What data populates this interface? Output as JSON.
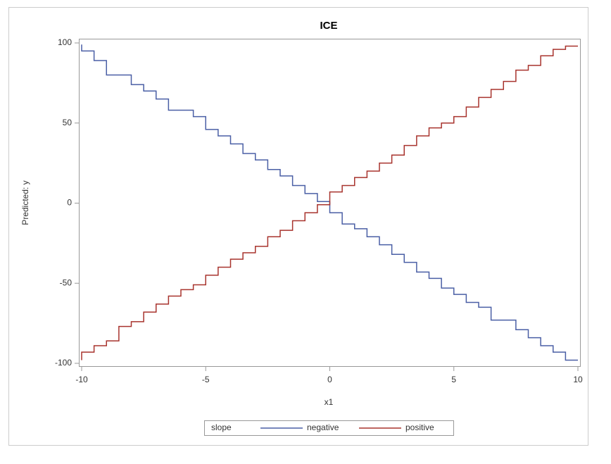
{
  "chart_data": {
    "type": "line",
    "step": true,
    "title": "ICE",
    "xlabel": "x1",
    "ylabel": "Predicted: y",
    "legend_title": "slope",
    "x": [
      -10,
      -9.5,
      -9,
      -8.5,
      -8,
      -7.5,
      -7,
      -6.5,
      -6,
      -5.5,
      -5,
      -4.5,
      -4,
      -3.5,
      -3,
      -2.5,
      -2,
      -1.5,
      -1,
      -0.5,
      0,
      0.5,
      1,
      1.5,
      2,
      2.5,
      3,
      3.5,
      4,
      4.5,
      5,
      5.5,
      6,
      6.5,
      7,
      7.5,
      8,
      8.5,
      9,
      9.5,
      10
    ],
    "series": [
      {
        "name": "negative",
        "color": "#4a5fa5",
        "values": [
          99,
          95,
          89,
          80,
          80,
          74,
          70,
          65,
          58,
          58,
          54,
          46,
          42,
          37,
          31,
          27,
          21,
          17,
          11,
          6,
          1,
          -6,
          -13,
          -16,
          -21,
          -26,
          -32,
          -37,
          -43,
          -47,
          -53,
          -57,
          -62,
          -65,
          -73,
          -73,
          -79,
          -84,
          -89,
          -93,
          -98
        ]
      },
      {
        "name": "positive",
        "color": "#a8332d",
        "values": [
          -98,
          -93,
          -89,
          -86,
          -77,
          -74,
          -68,
          -63,
          -58,
          -54,
          -51,
          -45,
          -40,
          -35,
          -31,
          -27,
          -21,
          -17,
          -11,
          -6,
          -1,
          7,
          11,
          16,
          20,
          25,
          30,
          36,
          42,
          47,
          50,
          54,
          60,
          66,
          71,
          76,
          83,
          86,
          92,
          96,
          98
        ]
      }
    ],
    "xlim": [
      -10,
      10
    ],
    "xticks": [
      -10,
      -5,
      0,
      5,
      10
    ],
    "ylim": [
      -100,
      100
    ],
    "yticks": [
      -100,
      -50,
      0,
      50,
      100
    ]
  }
}
